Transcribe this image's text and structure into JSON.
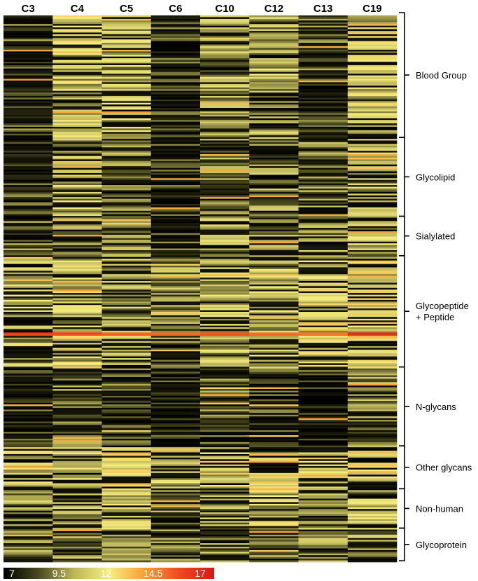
{
  "chart_data": {
    "type": "heatmap",
    "columns": [
      "C3",
      "C4",
      "C5",
      "C6",
      "C10",
      "C12",
      "C13",
      "C19"
    ],
    "row_groups": [
      {
        "label": "Blood Group",
        "rows": 72
      },
      {
        "label": "Glycolipid",
        "rows": 46
      },
      {
        "label": "Sialylated",
        "rows": 23
      },
      {
        "label": "Glycopeptide\n+ Peptide",
        "rows": 65
      },
      {
        "label": "N-glycans",
        "rows": 46
      },
      {
        "label": "Other glycans",
        "rows": 25
      },
      {
        "label": "Non-human",
        "rows": 23
      },
      {
        "label": "Glycoprotein",
        "rows": 19
      }
    ],
    "colorbar": {
      "ticks": [
        "7",
        "9.5",
        "12",
        "14.5",
        "17"
      ],
      "range": [
        7,
        17
      ],
      "colors": [
        "#000000",
        "#4a4a1e",
        "#bcb55a",
        "#f6ee80",
        "#f5a236",
        "#ef4a20",
        "#d81818"
      ]
    },
    "group_value_profile": [
      [
        8.4,
        10.6,
        10.3,
        8.0,
        9.8,
        10.2,
        8.8,
        10.8
      ],
      [
        8.2,
        10.2,
        9.0,
        8.0,
        9.3,
        9.6,
        9.0,
        10.0
      ],
      [
        8.6,
        10.0,
        9.2,
        8.2,
        9.8,
        9.2,
        9.6,
        10.2
      ],
      [
        10.2,
        10.6,
        10.0,
        9.4,
        10.3,
        10.4,
        11.0,
        11.2
      ],
      [
        7.8,
        8.8,
        8.4,
        7.6,
        8.6,
        8.0,
        7.8,
        9.2
      ],
      [
        11.0,
        11.2,
        11.6,
        10.4,
        11.0,
        11.8,
        11.0,
        11.5
      ],
      [
        9.6,
        10.0,
        10.6,
        9.0,
        10.0,
        10.6,
        9.6,
        10.4
      ],
      [
        9.2,
        9.4,
        9.6,
        8.8,
        9.4,
        9.6,
        9.4,
        9.6
      ]
    ],
    "highlight_rows": [
      {
        "group": 3,
        "row": 44,
        "values": [
          15.8,
          15.5,
          14.8,
          14.6,
          15.0,
          14.6,
          14.4,
          16.4
        ]
      },
      {
        "group": 3,
        "row": 45,
        "values": [
          15.4,
          15.2,
          15.0,
          14.8,
          15.2,
          14.8,
          14.6,
          16.0
        ]
      }
    ]
  }
}
